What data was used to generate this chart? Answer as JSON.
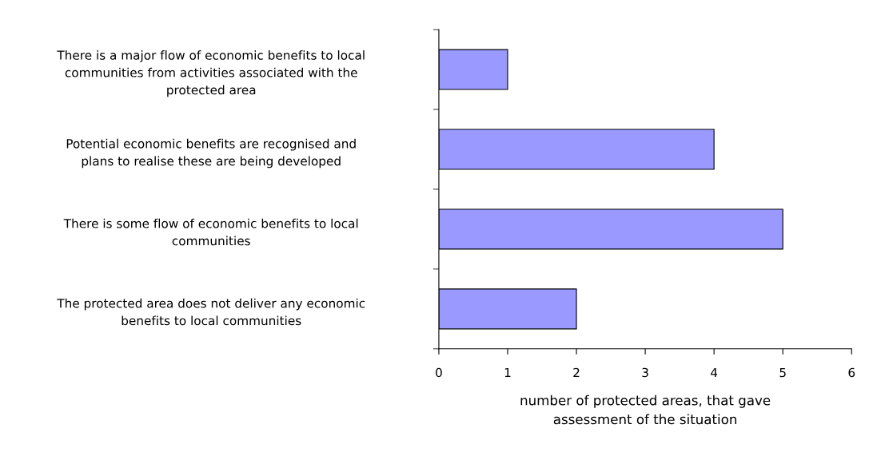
{
  "chart_data": {
    "type": "bar",
    "orientation": "horizontal",
    "categories": [
      "There is a major flow of economic benefits to local\ncommunities from activities associated with the\nprotected area",
      "Potential economic benefits are recognised and\nplans to realise these are being developed",
      "There is some flow of economic benefits to local\ncommunities",
      "The protected area does not deliver any economic\nbenefits to local communities"
    ],
    "values": [
      1,
      4,
      5,
      2
    ],
    "color": "#9999ff",
    "xlabel": "number of protected areas, that gave\nassessment of the situation",
    "xlim": [
      0,
      6
    ],
    "xticks": [
      0,
      1,
      2,
      3,
      4,
      5,
      6
    ],
    "grid": false
  }
}
